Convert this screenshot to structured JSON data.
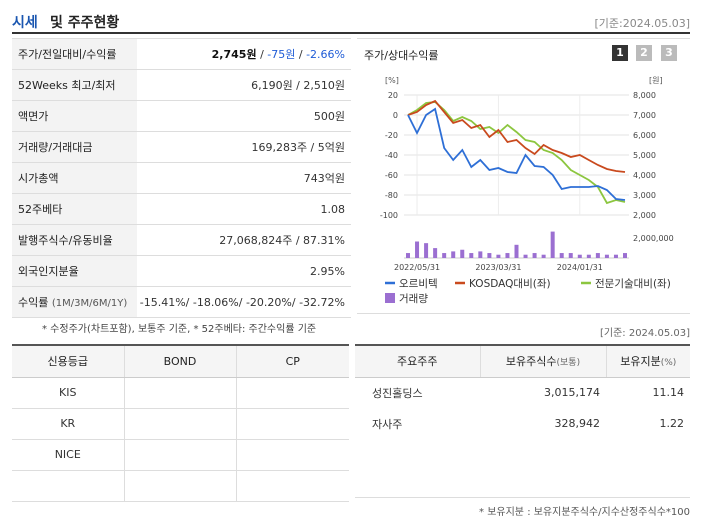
{
  "header": {
    "title_main": "시세",
    "title_rest": "및 주주현황",
    "date": "[기준:2024.05.03]"
  },
  "summary": [
    {
      "label": "주가/전일대비/수익률",
      "price": "2,745원",
      "sep1": " / ",
      "change": "-75원",
      "sep2": " / ",
      "rate": "-2.66%"
    },
    {
      "label": "52Weeks 최고/최저",
      "value": "6,190원 / 2,510원"
    },
    {
      "label": "액면가",
      "value": "500원"
    },
    {
      "label": "거래량/거래대금",
      "value": "169,283주 / 5억원"
    },
    {
      "label": "시가총액",
      "value": "743억원"
    },
    {
      "label": "52주베타",
      "value": "1.08"
    },
    {
      "label": "발행주식수/유동비율",
      "value": "27,068,824주 / 87.31%"
    },
    {
      "label": "외국인지분율",
      "value": "2.95%"
    },
    {
      "label": "수익률",
      "label_sub": "(1M/3M/6M/1Y)",
      "value": "-15.41%/ -18.06%/ -20.20%/ -32.72%"
    }
  ],
  "summary_note": "* 수정주가(차트포함), 보통주 기준, * 52주베타: 주간수익률 기준",
  "chart_panel": {
    "title": "주가/상대수익률",
    "pages": [
      "1",
      "2",
      "3"
    ],
    "active_page": 0
  },
  "chart_data": {
    "type": "line",
    "title": "주가/상대수익률",
    "left_axis_unit": "[%]",
    "right_axis_unit": "[원]",
    "ylim_left": [
      -100,
      20
    ],
    "yticks_left": [
      "20",
      "0",
      "-20",
      "-40",
      "-60",
      "-80",
      "-100"
    ],
    "ylim_right": [
      2000,
      8000
    ],
    "yticks_right": [
      "8,000",
      "7,000",
      "6,000",
      "5,000",
      "4,000",
      "3,000",
      "2,000"
    ],
    "volume_tick": "2,000,000",
    "x_ticks": [
      "2022/05/31",
      "2023/03/31",
      "2024/01/31"
    ],
    "x": [
      0,
      1,
      2,
      3,
      4,
      5,
      6,
      7,
      8,
      9,
      10,
      11,
      12,
      13,
      14,
      15,
      16,
      17,
      18,
      19,
      20,
      21,
      22,
      23,
      24
    ],
    "series": [
      {
        "name": "오르비텍",
        "color": "#2e6fd6",
        "values": [
          0,
          -18,
          0,
          6,
          -33,
          -45,
          -35,
          -52,
          -45,
          -55,
          -53,
          -57,
          -58,
          -40,
          -51,
          -52,
          -60,
          -74,
          -72,
          -72,
          -72,
          -71,
          -75,
          -84,
          -85
        ]
      },
      {
        "name": "KOSDAQ대비(좌)",
        "color": "#c94a1e",
        "values": [
          0,
          3,
          10,
          14,
          3,
          -8,
          -5,
          -13,
          -10,
          -22,
          -15,
          -27,
          -25,
          -33,
          -39,
          -30,
          -35,
          -38,
          -42,
          -40,
          -45,
          -50,
          -54,
          -56,
          -57
        ]
      },
      {
        "name": "전문기술대비(좌)",
        "color": "#8cc63f",
        "values": [
          0,
          5,
          12,
          13,
          5,
          -6,
          -2,
          -6,
          -14,
          -12,
          -18,
          -10,
          -17,
          -25,
          -27,
          -35,
          -38,
          -45,
          -55,
          -60,
          -65,
          -72,
          -88,
          -85,
          -87
        ]
      }
    ],
    "volume": {
      "name": "거래량",
      "color": "#9b6fd1",
      "values": [
        0.3,
        1.0,
        0.9,
        0.6,
        0.3,
        0.4,
        0.5,
        0.3,
        0.4,
        0.3,
        0.2,
        0.3,
        0.8,
        0.2,
        0.3,
        0.2,
        1.6,
        0.3,
        0.3,
        0.2,
        0.2,
        0.3,
        0.2,
        0.2,
        0.3
      ],
      "max": 2.0
    }
  },
  "credit": {
    "headers": [
      "신용등급",
      "BOND",
      "CP"
    ],
    "rows": [
      [
        "KIS",
        "",
        ""
      ],
      [
        "KR",
        "",
        ""
      ],
      [
        "NICE",
        "",
        ""
      ],
      [
        "",
        "",
        ""
      ]
    ]
  },
  "holders": {
    "headers": [
      "주요주주",
      "보유주식수",
      "(보통)",
      "보유지분",
      "(%)"
    ],
    "rows": [
      [
        "성진홀딩스",
        "3,015,174",
        "11.14"
      ],
      [
        "자사주",
        "328,942",
        "1.22"
      ]
    ]
  },
  "holders_note": "* 보유지분 : 보유지분주식수/지수산정주식수*100",
  "chart_date_note": "[기준: 2024.05.03]"
}
